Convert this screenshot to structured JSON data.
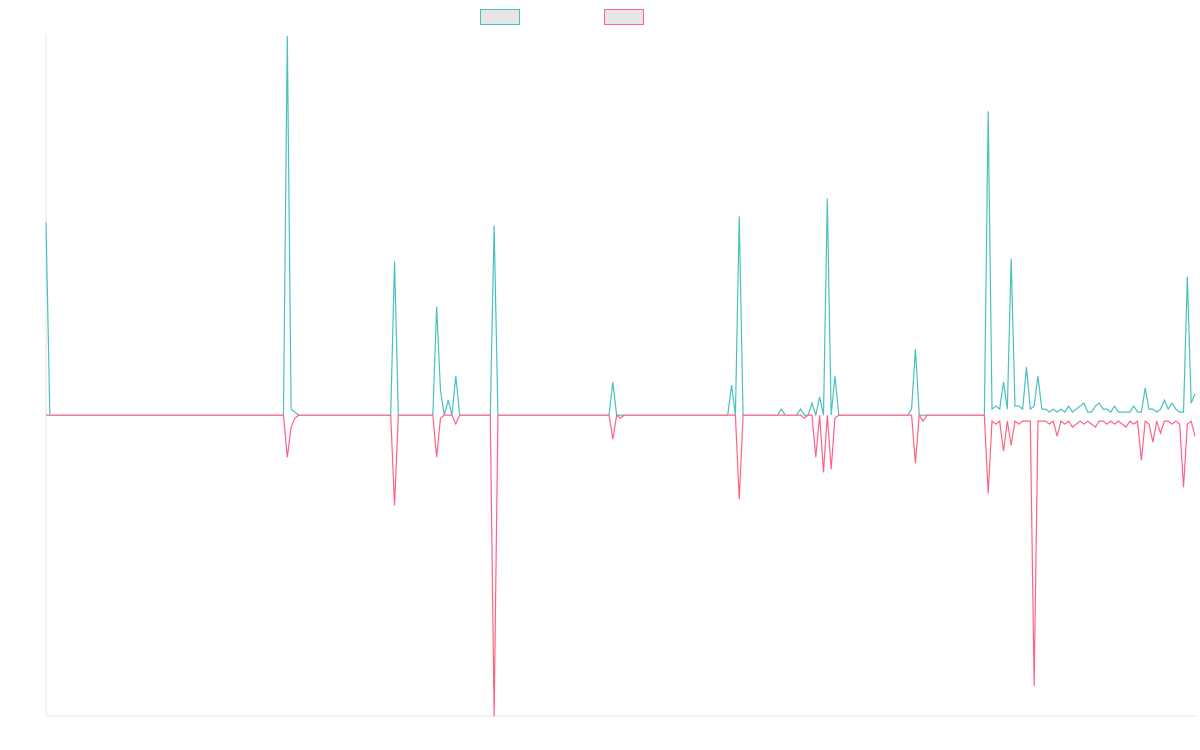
{
  "colors": {
    "series_a": "#4bc0c0",
    "series_b": "#ff6384",
    "axis": "#e5e5e5",
    "legend_fill": "#e6e6e6"
  },
  "legend": {
    "items": [
      {
        "label": "",
        "color": "#4bc0c0"
      },
      {
        "label": "",
        "color": "#ff6384"
      }
    ]
  },
  "chart_data": {
    "type": "line",
    "title": "",
    "xlabel": "",
    "ylabel": "",
    "grid": false,
    "legend_position": "top-center",
    "ylim": [
      -100,
      126
    ],
    "x_count": 301,
    "series": [
      {
        "color": "#4bc0c0",
        "points": [
          [
            0,
            64
          ],
          [
            1,
            0
          ],
          [
            2,
            0
          ],
          [
            3,
            0
          ],
          [
            62,
            0
          ],
          [
            63,
            126
          ],
          [
            64,
            2
          ],
          [
            65,
            1
          ],
          [
            66,
            0
          ],
          [
            90,
            0
          ],
          [
            91,
            51
          ],
          [
            92,
            0
          ],
          [
            101,
            0
          ],
          [
            102,
            36
          ],
          [
            103,
            8
          ],
          [
            104,
            0
          ],
          [
            105,
            5
          ],
          [
            106,
            0
          ],
          [
            107,
            13
          ],
          [
            108,
            0
          ],
          [
            116,
            0
          ],
          [
            117,
            63
          ],
          [
            118,
            0
          ],
          [
            147,
            0
          ],
          [
            148,
            11
          ],
          [
            149,
            0
          ],
          [
            150,
            0
          ],
          [
            178,
            0
          ],
          [
            179,
            10
          ],
          [
            180,
            0
          ],
          [
            181,
            66
          ],
          [
            182,
            0
          ],
          [
            191,
            0
          ],
          [
            192,
            2
          ],
          [
            193,
            0
          ],
          [
            196,
            0
          ],
          [
            197,
            2
          ],
          [
            198,
            0
          ],
          [
            199,
            0
          ],
          [
            200,
            4
          ],
          [
            201,
            0
          ],
          [
            202,
            6
          ],
          [
            203,
            0
          ],
          [
            204,
            72
          ],
          [
            205,
            0
          ],
          [
            206,
            13
          ],
          [
            207,
            0
          ],
          [
            225,
            0
          ],
          [
            226,
            2
          ],
          [
            227,
            22
          ],
          [
            228,
            0
          ],
          [
            245,
            0
          ],
          [
            246,
            101
          ],
          [
            247,
            2
          ],
          [
            248,
            3
          ],
          [
            249,
            2
          ],
          [
            250,
            11
          ],
          [
            251,
            2
          ],
          [
            252,
            52
          ],
          [
            253,
            3
          ],
          [
            254,
            3
          ],
          [
            255,
            2
          ],
          [
            256,
            16
          ],
          [
            257,
            2
          ],
          [
            258,
            3
          ],
          [
            259,
            13
          ],
          [
            260,
            2
          ],
          [
            261,
            2
          ],
          [
            262,
            1
          ],
          [
            263,
            2
          ],
          [
            264,
            1
          ],
          [
            265,
            2
          ],
          [
            266,
            1
          ],
          [
            267,
            3
          ],
          [
            268,
            1
          ],
          [
            269,
            2
          ],
          [
            270,
            3
          ],
          [
            271,
            4
          ],
          [
            272,
            1
          ],
          [
            273,
            1
          ],
          [
            274,
            3
          ],
          [
            275,
            4
          ],
          [
            276,
            2
          ],
          [
            277,
            2
          ],
          [
            278,
            1
          ],
          [
            279,
            3
          ],
          [
            280,
            1
          ],
          [
            281,
            1
          ],
          [
            282,
            1
          ],
          [
            283,
            1
          ],
          [
            284,
            3
          ],
          [
            285,
            1
          ],
          [
            286,
            1
          ],
          [
            287,
            9
          ],
          [
            288,
            2
          ],
          [
            289,
            2
          ],
          [
            290,
            1
          ],
          [
            291,
            2
          ],
          [
            292,
            5
          ],
          [
            293,
            2
          ],
          [
            294,
            4
          ],
          [
            295,
            2
          ],
          [
            296,
            1
          ],
          [
            297,
            1
          ],
          [
            298,
            46
          ],
          [
            299,
            4
          ],
          [
            300,
            7
          ]
        ]
      },
      {
        "color": "#ff6384",
        "points": [
          [
            0,
            0
          ],
          [
            62,
            0
          ],
          [
            63,
            -14
          ],
          [
            64,
            -4
          ],
          [
            65,
            -1
          ],
          [
            66,
            0
          ],
          [
            90,
            0
          ],
          [
            91,
            -30
          ],
          [
            92,
            0
          ],
          [
            101,
            0
          ],
          [
            102,
            -14
          ],
          [
            103,
            -1
          ],
          [
            104,
            0
          ],
          [
            105,
            0
          ],
          [
            106,
            0
          ],
          [
            107,
            -3
          ],
          [
            108,
            0
          ],
          [
            116,
            0
          ],
          [
            117,
            -100
          ],
          [
            118,
            0
          ],
          [
            147,
            0
          ],
          [
            148,
            -8
          ],
          [
            149,
            0
          ],
          [
            150,
            -1
          ],
          [
            151,
            0
          ],
          [
            180,
            0
          ],
          [
            181,
            -28
          ],
          [
            182,
            0
          ],
          [
            191,
            0
          ],
          [
            192,
            0
          ],
          [
            193,
            0
          ],
          [
            194,
            0
          ],
          [
            195,
            0
          ],
          [
            196,
            0
          ],
          [
            197,
            0
          ],
          [
            198,
            -1
          ],
          [
            199,
            0
          ],
          [
            200,
            0
          ],
          [
            201,
            -14
          ],
          [
            202,
            0
          ],
          [
            203,
            -19
          ],
          [
            204,
            0
          ],
          [
            205,
            -18
          ],
          [
            206,
            -1
          ],
          [
            207,
            0
          ],
          [
            225,
            0
          ],
          [
            226,
            0
          ],
          [
            227,
            -16
          ],
          [
            228,
            0
          ],
          [
            229,
            -2
          ],
          [
            230,
            0
          ],
          [
            245,
            0
          ],
          [
            246,
            -26
          ],
          [
            247,
            -2
          ],
          [
            248,
            -3
          ],
          [
            249,
            -2
          ],
          [
            250,
            -12
          ],
          [
            251,
            -2
          ],
          [
            252,
            -10
          ],
          [
            253,
            -2
          ],
          [
            254,
            -3
          ],
          [
            255,
            -2
          ],
          [
            256,
            -2
          ],
          [
            257,
            -2
          ],
          [
            258,
            -90
          ],
          [
            259,
            -2
          ],
          [
            260,
            -2
          ],
          [
            261,
            -2
          ],
          [
            262,
            -3
          ],
          [
            263,
            -2
          ],
          [
            264,
            -7
          ],
          [
            265,
            -2
          ],
          [
            266,
            -3
          ],
          [
            267,
            -2
          ],
          [
            268,
            -4
          ],
          [
            269,
            -3
          ],
          [
            270,
            -2
          ],
          [
            271,
            -3
          ],
          [
            272,
            -2
          ],
          [
            273,
            -3
          ],
          [
            274,
            -4
          ],
          [
            275,
            -2
          ],
          [
            276,
            -2
          ],
          [
            277,
            -3
          ],
          [
            278,
            -2
          ],
          [
            279,
            -3
          ],
          [
            280,
            -2
          ],
          [
            281,
            -3
          ],
          [
            282,
            -4
          ],
          [
            283,
            -2
          ],
          [
            284,
            -3
          ],
          [
            285,
            -2
          ],
          [
            286,
            -15
          ],
          [
            287,
            -2
          ],
          [
            288,
            -3
          ],
          [
            289,
            -9
          ],
          [
            290,
            -2
          ],
          [
            291,
            -6
          ],
          [
            292,
            -2
          ],
          [
            293,
            -2
          ],
          [
            294,
            -3
          ],
          [
            295,
            -2
          ],
          [
            296,
            -3
          ],
          [
            297,
            -24
          ],
          [
            298,
            -3
          ],
          [
            299,
            -2
          ],
          [
            300,
            -7
          ]
        ]
      }
    ]
  }
}
